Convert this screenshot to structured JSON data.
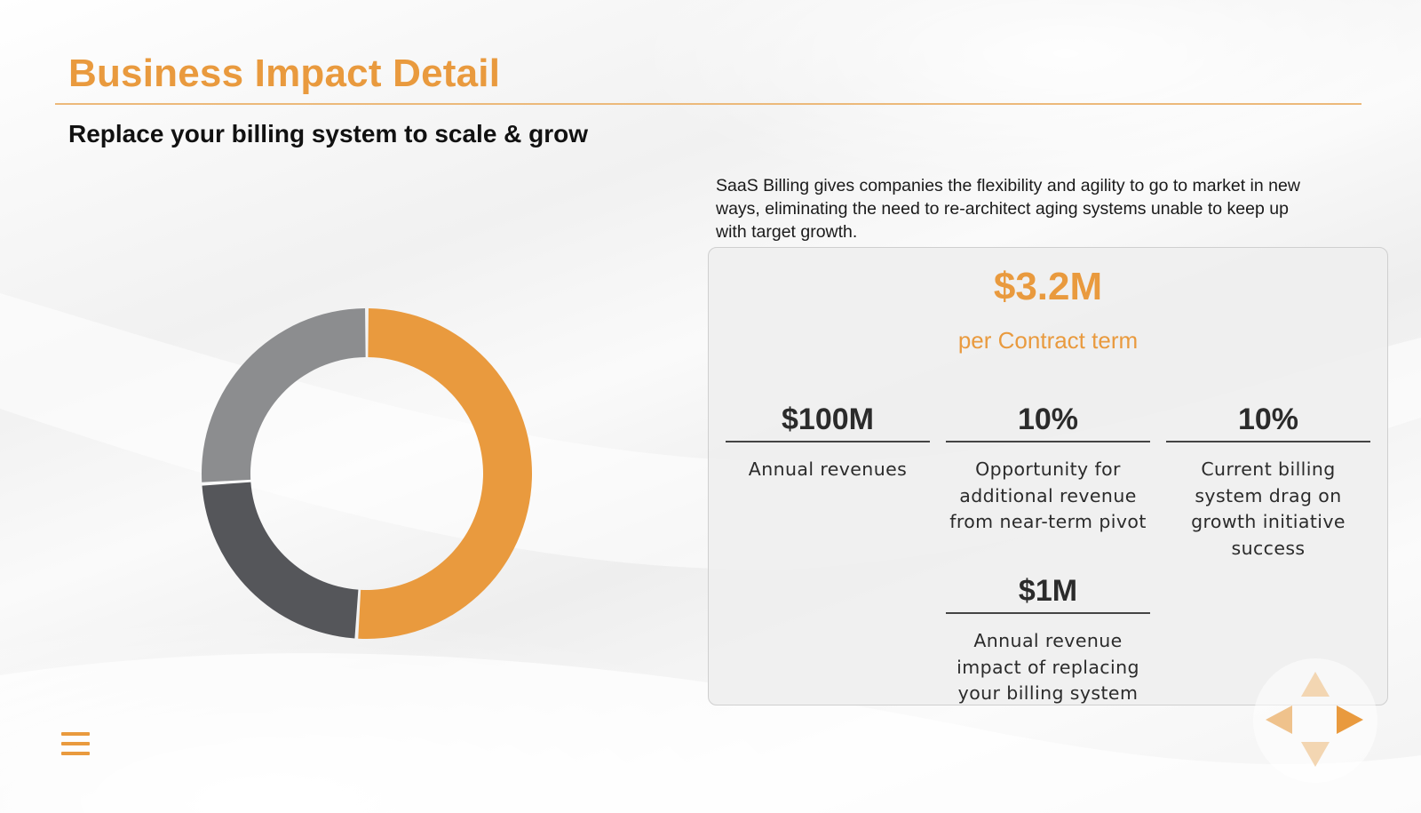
{
  "slide": {
    "title": "Business Impact Detail",
    "subtitle": "Replace your billing system to scale & grow",
    "description": "SaaS Billing gives companies the flexibility and agility to go to market in new ways, eliminating the need to re-architect aging systems unable to keep up with target growth."
  },
  "panel": {
    "headline_value": "$3.2M",
    "headline_caption": "per Contract term",
    "metrics": [
      {
        "value": "$100M",
        "label": "Annual revenues"
      },
      {
        "value": "10%",
        "label": "Opportunity for additional revenue from near-term pivot"
      },
      {
        "value": "10%",
        "label": "Current billing system drag on growth initiative success"
      },
      {
        "value": "$1M",
        "label": "Annual revenue impact of replacing your billing system"
      }
    ]
  },
  "chart_data": {
    "type": "pie",
    "title": "",
    "donut": true,
    "slices": [
      {
        "value": 51,
        "color": "#e99a3e"
      },
      {
        "value": 23,
        "color": "#55565a"
      },
      {
        "value": 26,
        "color": "#8c8d8f"
      }
    ]
  },
  "colors": {
    "accent": "#e99a3e",
    "text_dark": "#2b2b2b",
    "dark_gray": "#55565a",
    "mid_gray": "#8c8d8f"
  },
  "nav": {
    "menu_icon": "hamburger-menu-icon",
    "up_icon": "arrow-up-icon",
    "left_icon": "arrow-left-icon",
    "right_icon": "arrow-right-icon",
    "down_icon": "arrow-down-icon"
  }
}
